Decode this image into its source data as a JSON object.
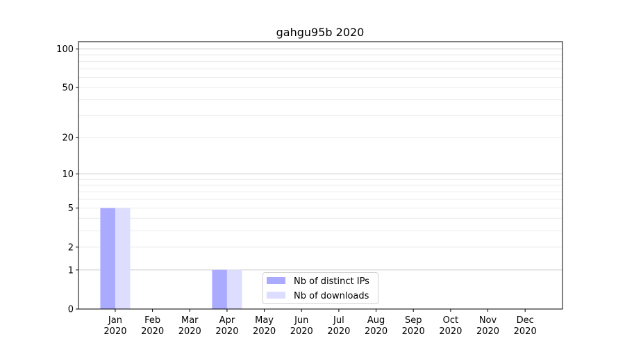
{
  "chart_data": {
    "type": "bar",
    "title": "gahgu95b 2020",
    "xlabel": "",
    "ylabel": "",
    "categories": [
      "Jan\n2020",
      "Feb\n2020",
      "Mar\n2020",
      "Apr\n2020",
      "May\n2020",
      "Jun\n2020",
      "Jul\n2020",
      "Aug\n2020",
      "Sep\n2020",
      "Oct\n2020",
      "Nov\n2020",
      "Dec\n2020"
    ],
    "series": [
      {
        "name": "Nb of distinct IPs",
        "color": "#aaaaff",
        "values": [
          5,
          0,
          0,
          1,
          0,
          0,
          0,
          0,
          0,
          0,
          0,
          0
        ]
      },
      {
        "name": "Nb of downloads",
        "color": "#ddddff",
        "values": [
          5,
          0,
          0,
          1,
          0,
          0,
          0,
          0,
          0,
          0,
          0,
          0
        ]
      }
    ],
    "y_scale": "log(1+y)",
    "ylim": [
      0,
      114
    ],
    "yticks": [
      0,
      1,
      2,
      5,
      10,
      20,
      50,
      100
    ],
    "grid": true,
    "legend_position": "lower-center"
  }
}
